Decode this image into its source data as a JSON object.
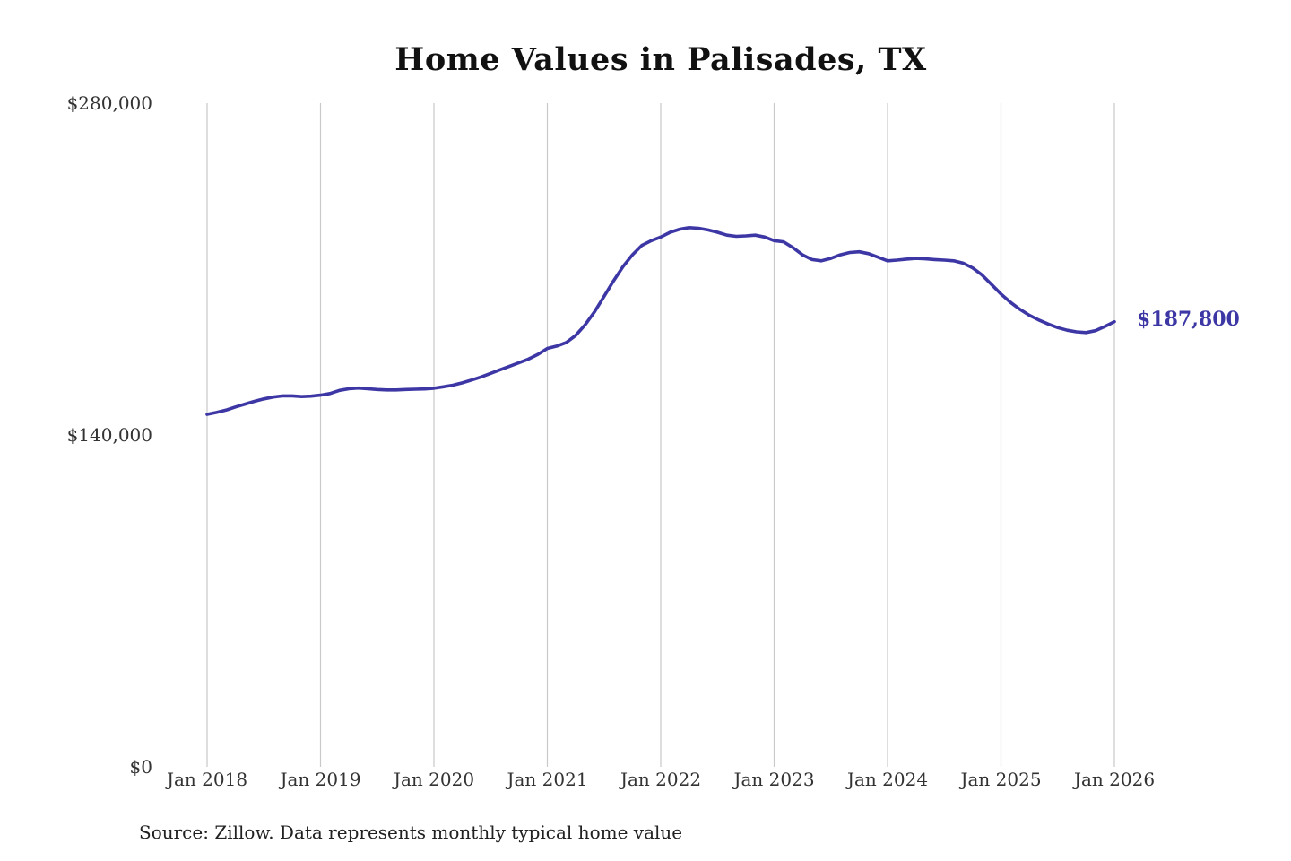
{
  "chart_data": {
    "type": "line",
    "title": "Home Values in Palisades, TX",
    "source_note": "Source: Zillow. Data represents monthly typical home value",
    "end_label": "$187,800",
    "line_color": "#3d37a5",
    "grid": "vertical-yearly",
    "legend": "none",
    "ylim": [
      0,
      280000
    ],
    "y_ticks": [
      {
        "value": 0,
        "label": "$0"
      },
      {
        "value": 140000,
        "label": "$140,000"
      },
      {
        "value": 280000,
        "label": "$280,000"
      }
    ],
    "x_tick_labels": [
      "Jan 2018",
      "Jan 2019",
      "Jan 2020",
      "Jan 2021",
      "Jan 2022",
      "Jan 2023",
      "Jan 2024",
      "Jan 2025",
      "Jan 2026"
    ],
    "series": [
      {
        "name": "Monthly typical home value",
        "values": [
          148700,
          149500,
          150500,
          151800,
          153000,
          154200,
          155200,
          156000,
          156500,
          156500,
          156200,
          156400,
          156800,
          157500,
          158800,
          159500,
          159800,
          159500,
          159200,
          159000,
          159000,
          159200,
          159300,
          159400,
          159700,
          160300,
          161000,
          162000,
          163200,
          164500,
          166000,
          167500,
          169000,
          170500,
          172000,
          174000,
          176500,
          177500,
          179000,
          182000,
          186500,
          192000,
          198500,
          205000,
          211000,
          216000,
          220000,
          222000,
          223500,
          225500,
          226800,
          227500,
          227200,
          226500,
          225500,
          224300,
          223800,
          224000,
          224300,
          223500,
          222000,
          221500,
          219000,
          216000,
          214000,
          213500,
          214500,
          216000,
          217000,
          217300,
          216500,
          215000,
          213500,
          213800,
          214200,
          214500,
          214300,
          214000,
          213800,
          213500,
          212500,
          210500,
          207500,
          203500,
          199500,
          196000,
          193000,
          190500,
          188500,
          186800,
          185300,
          184200,
          183500,
          183200,
          184000,
          185800,
          187800
        ]
      }
    ]
  }
}
